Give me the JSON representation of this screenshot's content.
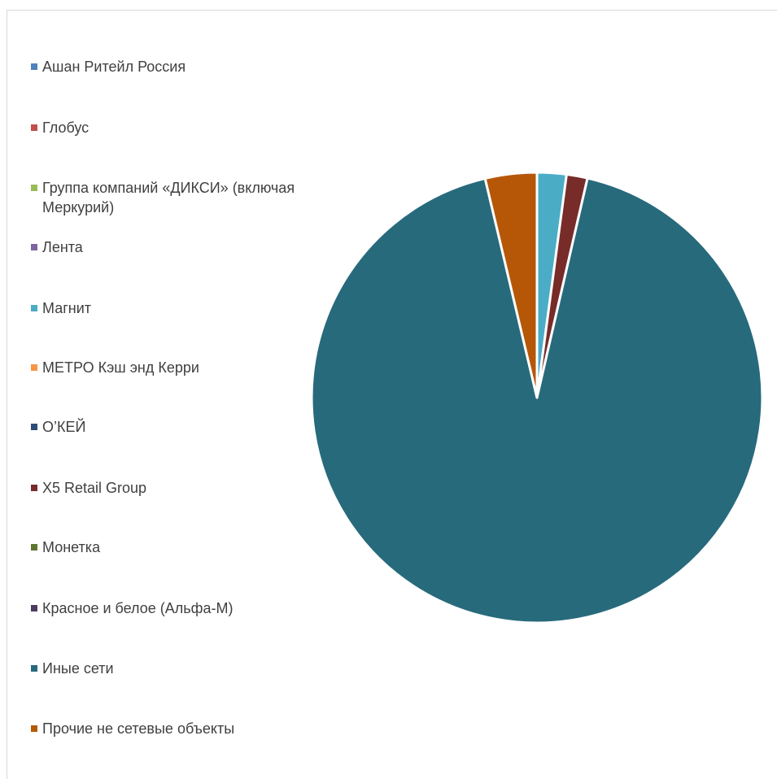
{
  "chart_data": {
    "type": "pie",
    "title": "",
    "legend_position": "left",
    "slices": [
      {
        "label": "Ашан Ритейл Россия",
        "value": 0,
        "color": "#4f81bd"
      },
      {
        "label": "Глобус",
        "value": 0,
        "color": "#c0504d"
      },
      {
        "label": "Группа компаний «ДИКСИ» (включая Меркурий)",
        "value": 0,
        "color": "#9bbb59"
      },
      {
        "label": "Лента",
        "value": 0,
        "color": "#8064a2"
      },
      {
        "label": "Магнит",
        "value": 2.1,
        "color": "#4bacc6"
      },
      {
        "label": "МЕТРО Кэш энд Керри",
        "value": 0,
        "color": "#f79646"
      },
      {
        "label": "О’КЕЙ",
        "value": 0,
        "color": "#2c4d75"
      },
      {
        "label": "X5 Retail Group",
        "value": 1.5,
        "color": "#772c2a"
      },
      {
        "label": "Монетка",
        "value": 0,
        "color": "#5f7530"
      },
      {
        "label": "Красное и белое (Альфа-М)",
        "value": 0,
        "color": "#4d3b62"
      },
      {
        "label": "Иные  сети",
        "value": 92.7,
        "color": "#276a7c"
      },
      {
        "label": "Прочие не сетевые объекты",
        "value": 3.7,
        "color": "#b65708"
      }
    ]
  }
}
